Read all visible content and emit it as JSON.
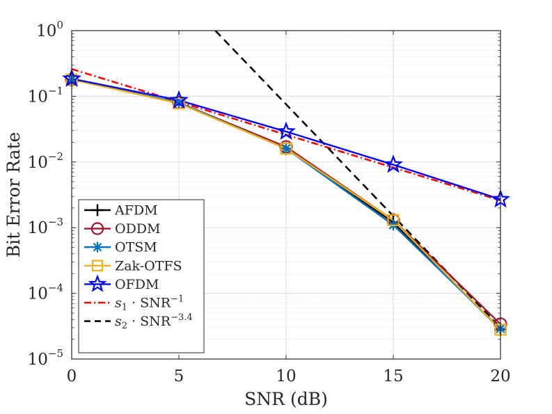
{
  "chart_data": {
    "type": "line",
    "xlabel": "SNR (dB)",
    "ylabel": "Bit Error Rate",
    "xlim": [
      0,
      20
    ],
    "ylim_log10": [
      -5,
      0
    ],
    "yscale": "log",
    "grid": true,
    "legend_placement": "bottom-left",
    "x_ticks": [
      "0",
      "5",
      "10",
      "15",
      "20"
    ],
    "y_ticks": [
      {
        "exp": -5,
        "base": "10",
        "sup": "−5"
      },
      {
        "exp": -4,
        "base": "10",
        "sup": "−4"
      },
      {
        "exp": -3,
        "base": "10",
        "sup": "−3"
      },
      {
        "exp": -2,
        "base": "10",
        "sup": "−2"
      },
      {
        "exp": -1,
        "base": "10",
        "sup": "−1"
      },
      {
        "exp": 0,
        "base": "10",
        "sup": "0"
      }
    ],
    "x": [
      0,
      5,
      10,
      15,
      20
    ],
    "series": [
      {
        "name": "AFDM",
        "color": "#000000",
        "marker": "plus",
        "style": "solid",
        "values": [
          0.18,
          0.08,
          0.016,
          0.0012,
          2.8e-05
        ]
      },
      {
        "name": "ODDM",
        "color": "#A2142F",
        "marker": "circle",
        "style": "solid",
        "values": [
          0.18,
          0.08,
          0.017,
          0.0013,
          3.4e-05
        ]
      },
      {
        "name": "OTSM",
        "color": "#0072BD",
        "marker": "asterisk",
        "style": "solid",
        "values": [
          0.18,
          0.08,
          0.016,
          0.0011,
          2.9e-05
        ]
      },
      {
        "name": "Zak-OTFS",
        "color": "#EDB120",
        "marker": "square",
        "style": "solid",
        "values": [
          0.18,
          0.078,
          0.016,
          0.0013,
          2.8e-05
        ]
      },
      {
        "name": "OFDM",
        "color": "#0000FF",
        "marker": "star",
        "style": "solid",
        "values": [
          0.185,
          0.087,
          0.029,
          0.0091,
          0.0027
        ]
      }
    ],
    "reference_lines": [
      {
        "name": "s1 · SNR^-1",
        "label_main": "s",
        "label_sub": "1",
        "label_mid": " · SNR",
        "label_sup": "−1",
        "color": "#FF0000",
        "style": "dashdot",
        "x": [
          0,
          20
        ],
        "values": [
          0.26,
          0.0026
        ]
      },
      {
        "name": "s2 · SNR^-3.4",
        "label_main": "s",
        "label_sub": "2",
        "label_mid": " · SNR",
        "label_sup": "−3.4",
        "color": "#000000",
        "style": "dashed",
        "x": [
          6.7,
          20
        ],
        "values": [
          1.0,
          3e-05
        ]
      }
    ]
  }
}
